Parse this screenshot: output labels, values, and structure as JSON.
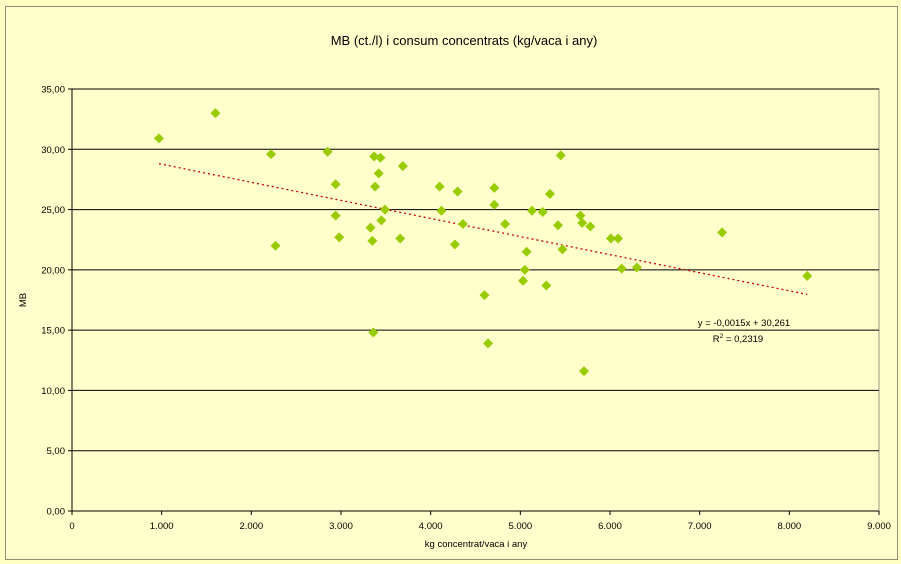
{
  "chart_data": {
    "type": "scatter",
    "title": "MB (ct./l)  i consum concentrats (kg/vaca i any)",
    "xlabel": "kg concentrat/vaca i any",
    "ylabel": "MB",
    "xlim": [
      0,
      9000
    ],
    "ylim": [
      0,
      35
    ],
    "xticks": [
      0,
      1000,
      2000,
      3000,
      4000,
      5000,
      6000,
      7000,
      8000,
      9000
    ],
    "xtick_labels": [
      "0",
      "1.000",
      "2.000",
      "3.000",
      "4.000",
      "5.000",
      "6.000",
      "7.000",
      "8.000",
      "9.000"
    ],
    "yticks": [
      0,
      5,
      10,
      15,
      20,
      25,
      30,
      35
    ],
    "ytick_labels": [
      "0,00",
      "5,00",
      "10,00",
      "15,00",
      "20,00",
      "25,00",
      "30,00",
      "35,00"
    ],
    "grid": "horizontal",
    "legend": "none",
    "series": [
      {
        "color": "#99cc00",
        "marker": "diamond",
        "points": [
          [
            970,
            30.9
          ],
          [
            1600,
            33.0
          ],
          [
            2220,
            29.6
          ],
          [
            2270,
            22.0
          ],
          [
            2850,
            29.8
          ],
          [
            2940,
            27.1
          ],
          [
            2940,
            24.5
          ],
          [
            2980,
            22.7
          ],
          [
            3330,
            23.5
          ],
          [
            3350,
            22.4
          ],
          [
            3360,
            14.8
          ],
          [
            3370,
            29.4
          ],
          [
            3380,
            26.9
          ],
          [
            3420,
            28.0
          ],
          [
            3440,
            29.3
          ],
          [
            3450,
            24.1
          ],
          [
            3490,
            25.0
          ],
          [
            3660,
            22.6
          ],
          [
            3690,
            28.6
          ],
          [
            4100,
            26.9
          ],
          [
            4120,
            24.9
          ],
          [
            4270,
            22.1
          ],
          [
            4300,
            26.5
          ],
          [
            4360,
            23.8
          ],
          [
            4600,
            17.9
          ],
          [
            4640,
            13.9
          ],
          [
            4710,
            26.8
          ],
          [
            4710,
            25.4
          ],
          [
            4830,
            23.8
          ],
          [
            5030,
            19.1
          ],
          [
            5050,
            20.0
          ],
          [
            5070,
            21.5
          ],
          [
            5130,
            24.9
          ],
          [
            5250,
            24.8
          ],
          [
            5290,
            18.7
          ],
          [
            5330,
            26.3
          ],
          [
            5420,
            23.7
          ],
          [
            5450,
            29.5
          ],
          [
            5470,
            21.7
          ],
          [
            5670,
            24.5
          ],
          [
            5690,
            23.9
          ],
          [
            5710,
            11.6
          ],
          [
            5780,
            23.6
          ],
          [
            6010,
            22.6
          ],
          [
            6090,
            22.6
          ],
          [
            6130,
            20.1
          ],
          [
            6300,
            20.2
          ],
          [
            7250,
            23.1
          ],
          [
            8200,
            19.5
          ]
        ]
      }
    ],
    "trendline": {
      "type": "linear",
      "slope": -0.0015,
      "intercept": 30.261,
      "color": "#cc0000",
      "x_range": [
        970,
        8200
      ],
      "equation": "y = -0,0015x + 30,261",
      "r2_prefix": "R",
      "r2_sup": "2",
      "r2_value": " = 0,2319"
    }
  }
}
